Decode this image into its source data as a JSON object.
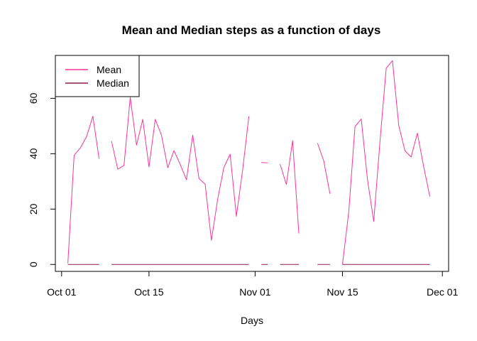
{
  "chart_data": {
    "type": "line",
    "title": "Mean and Median steps as a function of days",
    "xlabel": "Days",
    "ylabel": "",
    "x_start": "2012-10-01",
    "xlim": [
      "2012-09-30",
      "2012-12-02"
    ],
    "ylim": [
      -2.5,
      75.5
    ],
    "x_ticks": [
      {
        "date": "2012-10-01",
        "label": "Oct 01"
      },
      {
        "date": "2012-10-15",
        "label": "Oct 15"
      },
      {
        "date": "2012-11-01",
        "label": "Nov 01"
      },
      {
        "date": "2012-11-15",
        "label": "Nov 15"
      },
      {
        "date": "2012-12-01",
        "label": "Dec 01"
      }
    ],
    "y_ticks": [
      0,
      20,
      40,
      60
    ],
    "legend": {
      "position": "top-left"
    },
    "series": [
      {
        "name": "Mean",
        "color": "#ff3399",
        "points": [
          [
            "2012-10-02",
            0.4
          ],
          [
            "2012-10-03",
            39.4
          ],
          [
            "2012-10-04",
            42.1
          ],
          [
            "2012-10-05",
            46.2
          ],
          [
            "2012-10-06",
            53.5
          ],
          [
            "2012-10-07",
            38.2
          ],
          [
            "2012-10-09",
            44.5
          ],
          [
            "2012-10-10",
            34.4
          ],
          [
            "2012-10-11",
            35.8
          ],
          [
            "2012-10-12",
            60.4
          ],
          [
            "2012-10-13",
            43.1
          ],
          [
            "2012-10-14",
            52.4
          ],
          [
            "2012-10-15",
            35.2
          ],
          [
            "2012-10-16",
            52.4
          ],
          [
            "2012-10-17",
            46.7
          ],
          [
            "2012-10-18",
            34.9
          ],
          [
            "2012-10-19",
            41.1
          ],
          [
            "2012-10-20",
            36.1
          ],
          [
            "2012-10-21",
            30.6
          ],
          [
            "2012-10-22",
            46.7
          ],
          [
            "2012-10-23",
            31.0
          ],
          [
            "2012-10-24",
            29.0
          ],
          [
            "2012-10-25",
            8.7
          ],
          [
            "2012-10-26",
            23.5
          ],
          [
            "2012-10-27",
            35.1
          ],
          [
            "2012-10-28",
            39.8
          ],
          [
            "2012-10-29",
            17.4
          ],
          [
            "2012-10-30",
            34.1
          ],
          [
            "2012-10-31",
            53.5
          ],
          [
            "2012-11-02",
            36.8
          ],
          [
            "2012-11-03",
            36.7
          ],
          [
            "2012-11-05",
            36.2
          ],
          [
            "2012-11-06",
            28.9
          ],
          [
            "2012-11-07",
            44.7
          ],
          [
            "2012-11-08",
            11.2
          ],
          [
            "2012-11-11",
            43.8
          ],
          [
            "2012-11-12",
            37.4
          ],
          [
            "2012-11-13",
            25.5
          ],
          [
            "2012-11-15",
            0.1
          ],
          [
            "2012-11-16",
            18.9
          ],
          [
            "2012-11-17",
            49.8
          ],
          [
            "2012-11-18",
            52.5
          ],
          [
            "2012-11-19",
            30.7
          ],
          [
            "2012-11-20",
            15.5
          ],
          [
            "2012-11-21",
            44.4
          ],
          [
            "2012-11-22",
            70.9
          ],
          [
            "2012-11-23",
            73.6
          ],
          [
            "2012-11-24",
            50.3
          ],
          [
            "2012-11-25",
            41.1
          ],
          [
            "2012-11-26",
            38.8
          ],
          [
            "2012-11-27",
            47.4
          ],
          [
            "2012-11-28",
            35.4
          ],
          [
            "2012-11-29",
            24.5
          ]
        ]
      },
      {
        "name": "Median",
        "color": "#8b1a4a",
        "points": [
          [
            "2012-10-02",
            0
          ],
          [
            "2012-10-03",
            0
          ],
          [
            "2012-10-04",
            0
          ],
          [
            "2012-10-05",
            0
          ],
          [
            "2012-10-06",
            0
          ],
          [
            "2012-10-07",
            0
          ],
          [
            "2012-10-09",
            0
          ],
          [
            "2012-10-10",
            0
          ],
          [
            "2012-10-11",
            0
          ],
          [
            "2012-10-12",
            0
          ],
          [
            "2012-10-13",
            0
          ],
          [
            "2012-10-14",
            0
          ],
          [
            "2012-10-15",
            0
          ],
          [
            "2012-10-16",
            0
          ],
          [
            "2012-10-17",
            0
          ],
          [
            "2012-10-18",
            0
          ],
          [
            "2012-10-19",
            0
          ],
          [
            "2012-10-20",
            0
          ],
          [
            "2012-10-21",
            0
          ],
          [
            "2012-10-22",
            0
          ],
          [
            "2012-10-23",
            0
          ],
          [
            "2012-10-24",
            0
          ],
          [
            "2012-10-25",
            0
          ],
          [
            "2012-10-26",
            0
          ],
          [
            "2012-10-27",
            0
          ],
          [
            "2012-10-28",
            0
          ],
          [
            "2012-10-29",
            0
          ],
          [
            "2012-10-30",
            0
          ],
          [
            "2012-10-31",
            0
          ],
          [
            "2012-11-02",
            0
          ],
          [
            "2012-11-03",
            0
          ],
          [
            "2012-11-05",
            0
          ],
          [
            "2012-11-06",
            0
          ],
          [
            "2012-11-07",
            0
          ],
          [
            "2012-11-08",
            0
          ],
          [
            "2012-11-11",
            0
          ],
          [
            "2012-11-12",
            0
          ],
          [
            "2012-11-13",
            0
          ],
          [
            "2012-11-15",
            0
          ],
          [
            "2012-11-16",
            0
          ],
          [
            "2012-11-17",
            0
          ],
          [
            "2012-11-18",
            0
          ],
          [
            "2012-11-19",
            0
          ],
          [
            "2012-11-20",
            0
          ],
          [
            "2012-11-21",
            0
          ],
          [
            "2012-11-22",
            0
          ],
          [
            "2012-11-23",
            0
          ],
          [
            "2012-11-24",
            0
          ],
          [
            "2012-11-25",
            0
          ],
          [
            "2012-11-26",
            0
          ],
          [
            "2012-11-27",
            0
          ],
          [
            "2012-11-28",
            0
          ],
          [
            "2012-11-29",
            0
          ]
        ]
      }
    ]
  }
}
